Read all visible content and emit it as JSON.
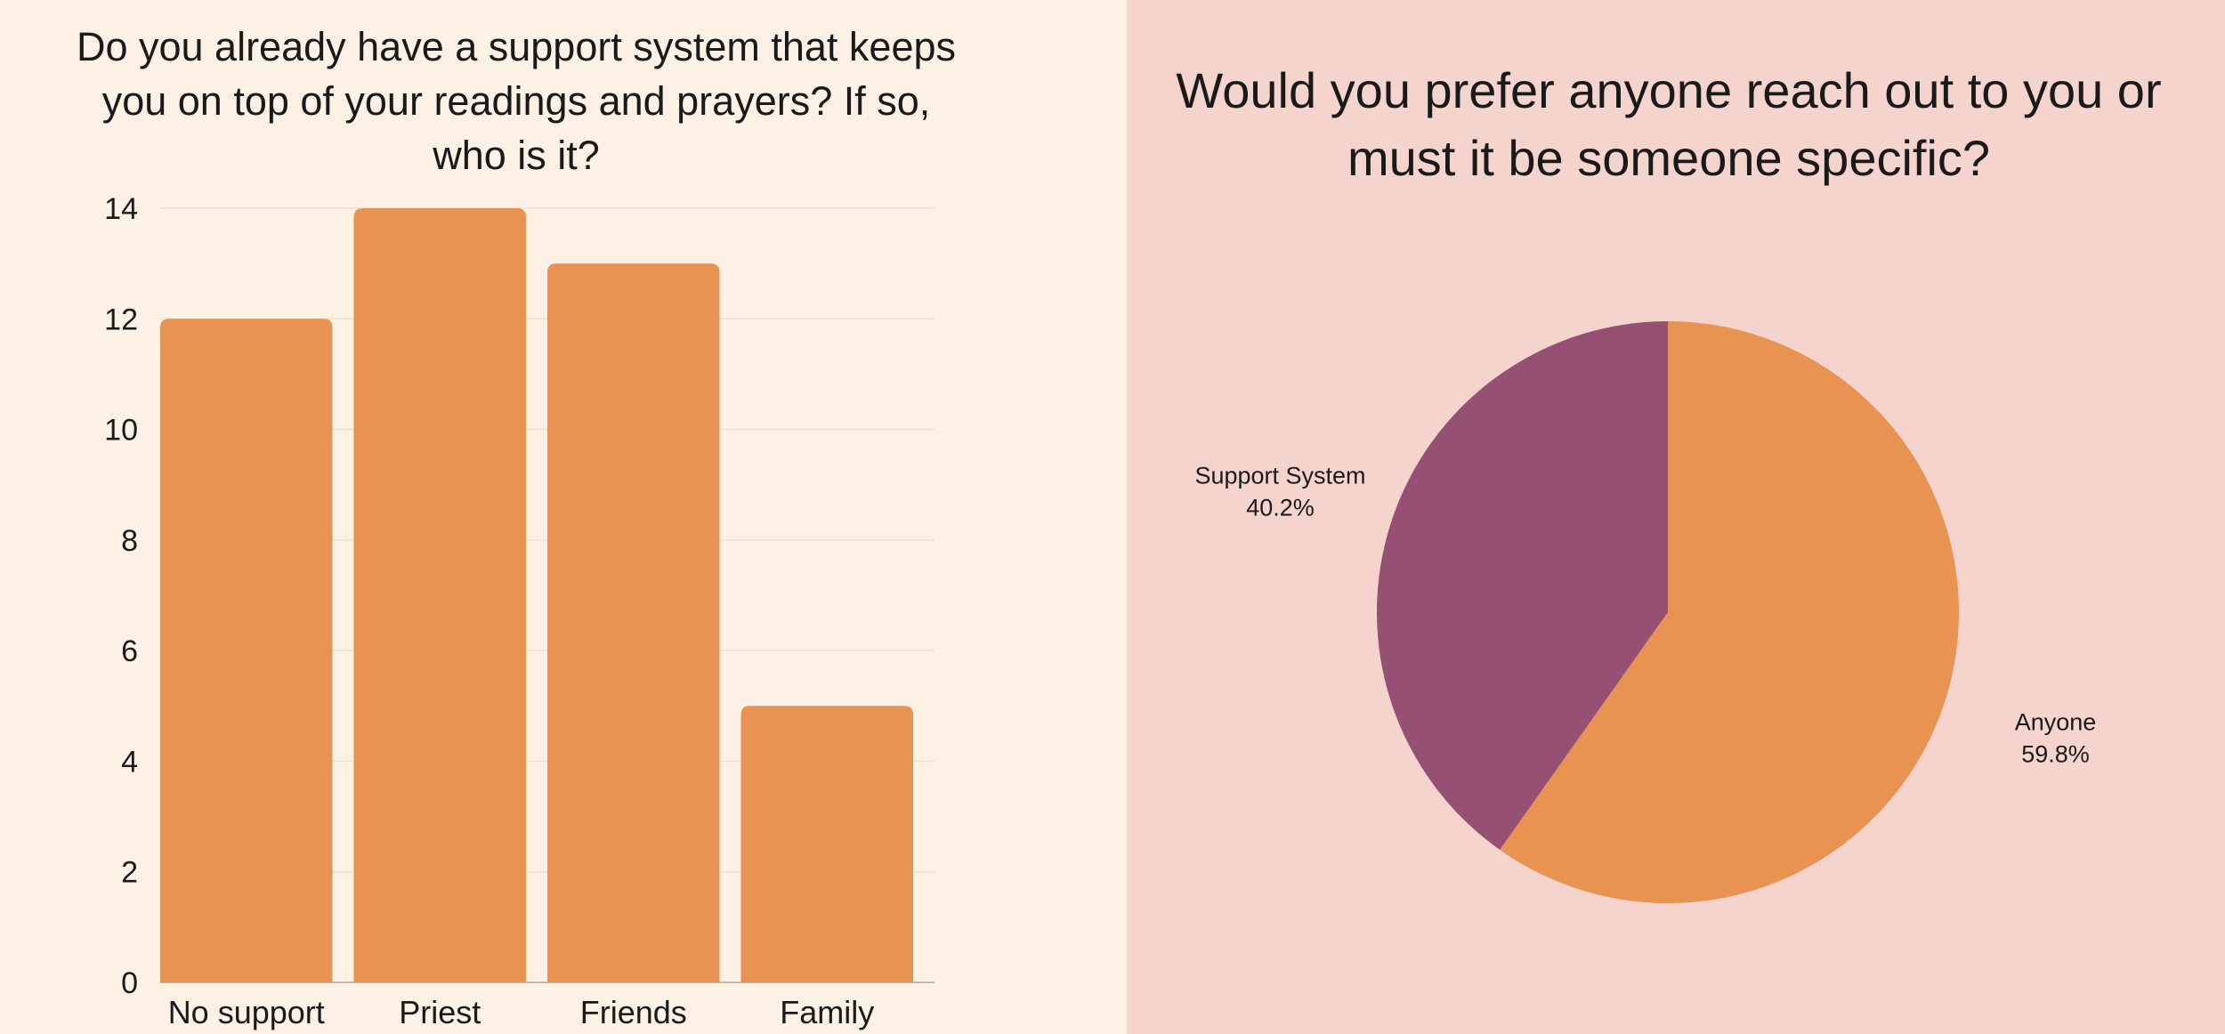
{
  "chart_data": [
    {
      "type": "bar",
      "title": "Do you already have a support system that keeps you on top of your readings and prayers? If so, who is it?",
      "categories": [
        "No support",
        "Priest",
        "Friends",
        "Family"
      ],
      "values": [
        12,
        14,
        13,
        5
      ],
      "yticks": [
        "0",
        "2",
        "4",
        "6",
        "8",
        "10",
        "12",
        "14"
      ],
      "ylim": [
        0,
        14
      ],
      "grid": true,
      "color": "#e89352"
    },
    {
      "type": "pie",
      "title": "Would you prefer anyone reach out to you or must it be someone specific?",
      "slices": [
        {
          "name": "Anyone",
          "value": 59.8,
          "label": "59.8%",
          "color": "#e89352"
        },
        {
          "name": "Support System",
          "value": 40.2,
          "label": "40.2%",
          "color": "#965073"
        }
      ]
    }
  ]
}
